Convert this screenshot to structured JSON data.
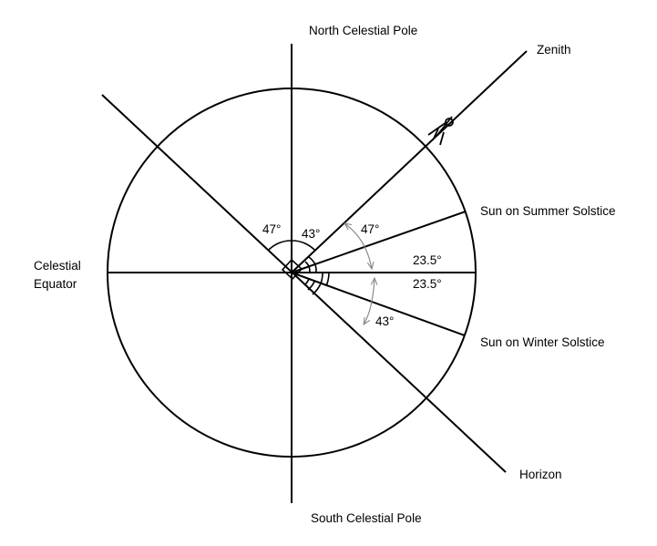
{
  "labels": {
    "north_celestial_pole": "North Celestial Pole",
    "south_celestial_pole": "South Celestial Pole",
    "zenith": "Zenith",
    "celestial_equator_line1": "Celestial",
    "celestial_equator_line2": "Equator",
    "sun_summer_solstice": "Sun on Summer Solstice",
    "sun_winter_solstice": "Sun on Winter Solstice",
    "horizon": "Horizon"
  },
  "angles": {
    "horizon_to_pole": "47°",
    "pole_to_zenith": "43°",
    "zenith_to_summer_sun": "47°",
    "summer_sun_to_equator": "23.5°",
    "equator_to_winter_sun": "23.5°",
    "winter_sun_to_horizon": "43°"
  },
  "colors": {
    "stroke": "#000000",
    "guide_arrows": "#8a8a8a",
    "background": "#ffffff"
  }
}
